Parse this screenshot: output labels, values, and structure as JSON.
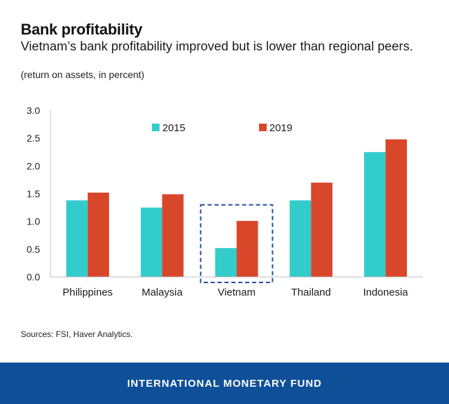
{
  "header": {
    "title": "Bank profitability",
    "subtitle": "Vietnam’s bank profitability improved but is lower than regional peers.",
    "units": "(return on assets, in percent)"
  },
  "chart_data": {
    "type": "bar",
    "title": "Bank profitability",
    "ylabel": "return on assets, in percent",
    "categories": [
      "Philippines",
      "Malaysia",
      "Vietnam",
      "Thailand",
      "Indonesia"
    ],
    "series": [
      {
        "name": "2015",
        "color": "#33cccc",
        "values": [
          1.38,
          1.25,
          0.52,
          1.38,
          2.25
        ]
      },
      {
        "name": "2019",
        "color": "#d9472b",
        "values": [
          1.52,
          1.49,
          1.01,
          1.7,
          2.48
        ]
      }
    ],
    "ylim": [
      0,
      3.0
    ],
    "yticks": [
      "0.0",
      "0.5",
      "1.0",
      "1.5",
      "2.0",
      "2.5",
      "3.0"
    ],
    "highlight_category": "Vietnam",
    "highlight_color": "#1f4e9c",
    "legend_position": "top"
  },
  "sources": "Sources: FSI, Haver Analytics.",
  "footer": {
    "label": "INTERNATIONAL MONETARY FUND"
  }
}
